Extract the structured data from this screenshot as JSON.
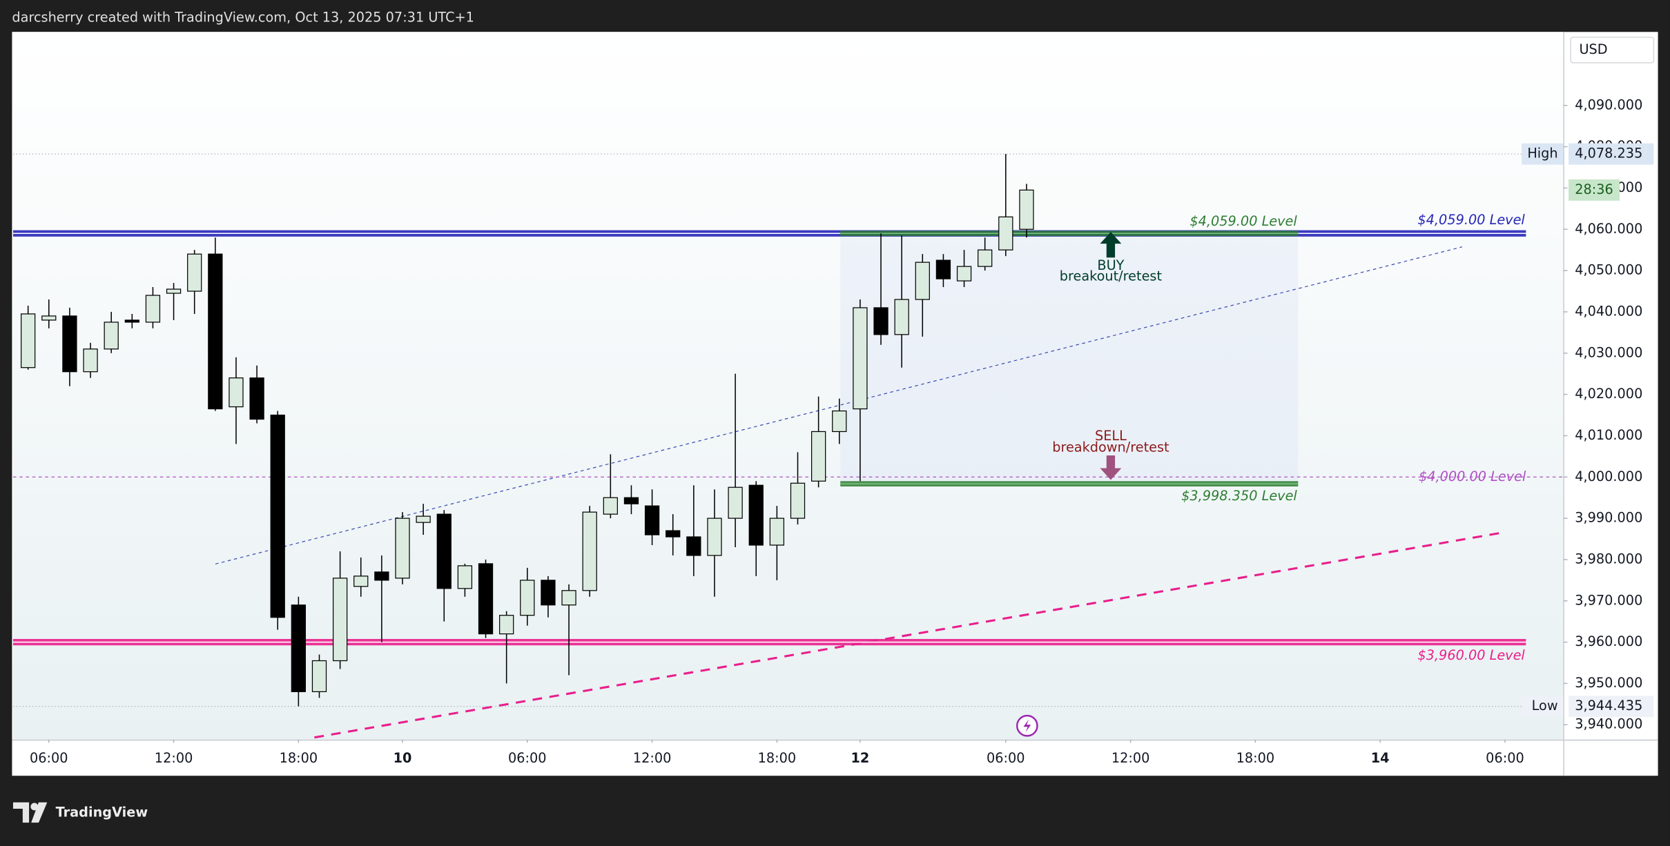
{
  "header": "darcsherry created with TradingView.com, Oct 13, 2025 07:31 UTC+1",
  "footer": "TradingView",
  "chart_data": {
    "type": "candlestick",
    "currency": "USD",
    "up_color": "#dcebdf",
    "down_color": "#000000",
    "grid": false,
    "open": [
      4026.5,
      4038,
      4039,
      4025.5,
      4031,
      4038,
      4037.5,
      4044.5,
      4045,
      4054,
      4017,
      4024,
      4015,
      3969,
      3948,
      3955.5,
      3973.5,
      3977,
      3975.5,
      3989,
      3991,
      3973,
      3979,
      3962,
      3966.5,
      3975,
      3969,
      3972.5,
      3991,
      3995,
      3993,
      3987,
      3985.5,
      3981,
      3990,
      3998,
      3983.5,
      3990,
      3999,
      4011,
      4016.5,
      4041,
      4034.5,
      4043,
      4052.5,
      4047.5,
      4051,
      4055,
      4060
    ],
    "high": [
      4041.5,
      4043,
      4041,
      4032.5,
      4040,
      4039.5,
      4046,
      4047,
      4055,
      4058,
      4029,
      4027,
      4016,
      3971,
      3957,
      3982,
      3980.5,
      3981,
      3991.5,
      3993.5,
      3992,
      3979,
      3980,
      3967.5,
      3978,
      3976,
      3974,
      3993,
      4005.5,
      3998,
      3997,
      3991,
      3998,
      3997,
      4025,
      3999,
      3993,
      4006,
      4019.5,
      4019,
      4043,
      4059,
      4058.5,
      4054,
      4054,
      4055,
      4058,
      4078.235,
      4071
    ],
    "low": [
      4026,
      4036,
      4022,
      4024,
      4030,
      4036,
      4036,
      4038,
      4039.5,
      4016,
      4008,
      4013,
      3963,
      3944.435,
      3946.5,
      3953.5,
      3971,
      3960,
      3974,
      3986,
      3965,
      3971,
      3961,
      3950,
      3964,
      3966,
      3952,
      3971,
      3990,
      3991,
      3983.5,
      3981,
      3976,
      3971,
      3983,
      3976,
      3975,
      3988.5,
      3997.5,
      4008,
      3999,
      4032,
      4026.5,
      4034,
      4046,
      4046,
      4050,
      4053.5,
      4058
    ],
    "close": [
      4039.5,
      4039,
      4025.5,
      4031,
      4037.5,
      4037.5,
      4044,
      4045.5,
      4054,
      4016.5,
      4024,
      4014,
      3966,
      3948,
      3955.5,
      3975.5,
      3976,
      3975,
      3990,
      3990.5,
      3973,
      3978.5,
      3962,
      3966.5,
      3975,
      3969,
      3972.5,
      3991.5,
      3995,
      3993.5,
      3986,
      3985.5,
      3981,
      3990,
      3997.5,
      3983.5,
      3990,
      3998.5,
      4011,
      4016,
      4041,
      4034.5,
      4043,
      4052,
      4048,
      4051,
      4055,
      4063,
      4069.5
    ],
    "ylim": [
      3936.4,
      4107.8
    ],
    "yticks": [
      {
        "value": 3940,
        "label": "3,940.000"
      },
      {
        "value": 3950,
        "label": "3,950.000"
      },
      {
        "value": 3960,
        "label": "3,960.000"
      },
      {
        "value": 3970,
        "label": "3,970.000"
      },
      {
        "value": 3980,
        "label": "3,980.000"
      },
      {
        "value": 3990,
        "label": "3,990.000"
      },
      {
        "value": 4000,
        "label": "4,000.000"
      },
      {
        "value": 4010,
        "label": "4,010.000"
      },
      {
        "value": 4020,
        "label": "4,020.000"
      },
      {
        "value": 4030,
        "label": "4,030.000"
      },
      {
        "value": 4040,
        "label": "4,040.000"
      },
      {
        "value": 4050,
        "label": "4,050.000"
      },
      {
        "value": 4060,
        "label": "4,060.000"
      },
      {
        "value": 4070,
        "label": "4,070.000"
      },
      {
        "value": 4080,
        "label": "4,080.000"
      },
      {
        "value": 4090,
        "label": "4,090.000"
      }
    ],
    "xlim": [
      -0.72,
      73.8
    ],
    "xticks": [
      {
        "value": 1,
        "label": "06:00"
      },
      {
        "value": 7,
        "label": "12:00"
      },
      {
        "value": 13,
        "label": "18:00"
      },
      {
        "value": 18,
        "label": "10"
      },
      {
        "value": 24,
        "label": "06:00"
      },
      {
        "value": 30,
        "label": "12:00"
      },
      {
        "value": 36,
        "label": "18:00"
      },
      {
        "value": 40,
        "label": "12"
      },
      {
        "value": 47,
        "label": "06:00"
      },
      {
        "value": 53,
        "label": "12:00"
      },
      {
        "value": 59,
        "label": "18:00"
      },
      {
        "value": 65,
        "label": "14"
      },
      {
        "value": 71,
        "label": "06:00"
      }
    ],
    "high_marker": {
      "name": "High",
      "value": {
        "value": 4078.235,
        "label": "4,078.235"
      }
    },
    "low_marker": {
      "name": "Low",
      "value": {
        "value": 3944.435,
        "label": "3,944.435"
      }
    },
    "countdown": "28:36",
    "levels": [
      {
        "label": "$4,059.00 Level",
        "value": 4059,
        "color": "#2626b8",
        "style": "band"
      },
      {
        "label": "$3,960.00 Level",
        "value": 3960,
        "color": "#e91e8c",
        "style": "band"
      },
      {
        "label": "$4,000.00 Level",
        "value": 4000,
        "color": "#b04fc4",
        "style": "dashed"
      },
      {
        "label": "$4,059.00 Level",
        "value": 4059,
        "color": "#2e7d32",
        "style": "zone"
      },
      {
        "label": "$3,998.350 Level",
        "value": 3998.35,
        "color": "#2e7d32",
        "style": "zone"
      }
    ],
    "annotations": [
      {
        "title": "BUY",
        "text": "breakout/retest",
        "color": "#003d2b"
      },
      {
        "title": "SELL",
        "text": "breakdown/retest",
        "color": "#8b1a1a"
      }
    ]
  }
}
